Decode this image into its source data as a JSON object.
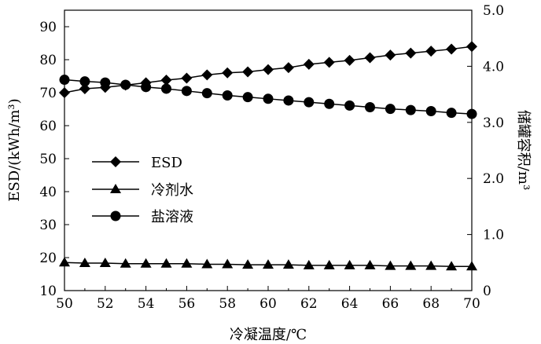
{
  "chart_data": {
    "type": "line",
    "xlabel": "冷凝温度/℃",
    "ylabel_left": "ESD/(kWh/m³)",
    "ylabel_right": "储罐容积/m³",
    "xlim": [
      50,
      70
    ],
    "ylim_left": [
      10,
      95
    ],
    "ylim_right": [
      0,
      5.0
    ],
    "x_ticks": [
      "50",
      "52",
      "54",
      "56",
      "58",
      "60",
      "62",
      "64",
      "66",
      "68",
      "70"
    ],
    "y_left_ticks": [
      "10",
      "20",
      "30",
      "40",
      "50",
      "60",
      "70",
      "80",
      "90"
    ],
    "y_right_ticks": [
      "0",
      "1.0",
      "2.0",
      "3.0",
      "4.0",
      "5.0"
    ],
    "x": [
      50,
      51,
      52,
      53,
      54,
      55,
      56,
      57,
      58,
      59,
      60,
      61,
      62,
      63,
      64,
      65,
      66,
      67,
      68,
      69,
      70
    ],
    "series": [
      {
        "name": "ESD",
        "axis": "left",
        "marker": "diamond",
        "values": [
          70.0,
          71.2,
          71.6,
          72.3,
          73.0,
          73.8,
          74.4,
          75.4,
          76.0,
          76.3,
          77.0,
          77.6,
          78.6,
          79.2,
          79.8,
          80.6,
          81.4,
          82.0,
          82.6,
          83.2,
          84.0
        ]
      },
      {
        "name": "冷剂水",
        "axis": "right",
        "marker": "triangle",
        "values": [
          0.5,
          0.49,
          0.49,
          0.48,
          0.48,
          0.48,
          0.48,
          0.47,
          0.47,
          0.46,
          0.46,
          0.46,
          0.45,
          0.45,
          0.45,
          0.45,
          0.44,
          0.44,
          0.44,
          0.43,
          0.43
        ]
      },
      {
        "name": "盐溶液",
        "axis": "right",
        "marker": "circle",
        "values": [
          3.76,
          3.73,
          3.71,
          3.67,
          3.63,
          3.6,
          3.56,
          3.52,
          3.48,
          3.45,
          3.42,
          3.39,
          3.36,
          3.33,
          3.3,
          3.27,
          3.24,
          3.22,
          3.2,
          3.17,
          3.15
        ]
      }
    ],
    "legend": [
      "ESD",
      "冷剂水",
      "盐溶液"
    ],
    "legend_position": "left-middle",
    "grid": false
  }
}
